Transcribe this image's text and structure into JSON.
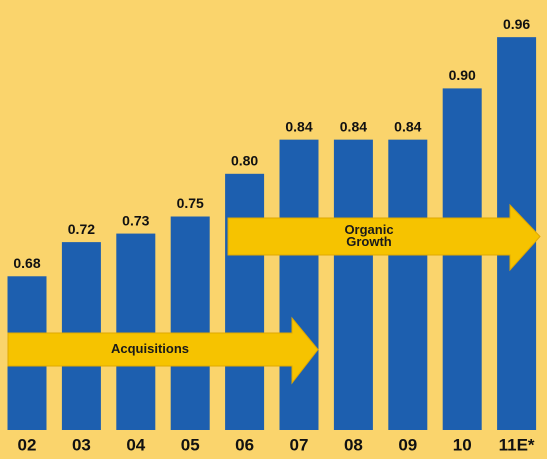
{
  "chart_data": {
    "type": "bar",
    "categories": [
      "02",
      "03",
      "04",
      "05",
      "06",
      "07",
      "08",
      "09",
      "10",
      "11E*"
    ],
    "values": [
      0.68,
      0.72,
      0.73,
      0.75,
      0.8,
      0.84,
      0.84,
      0.84,
      0.9,
      0.96
    ],
    "value_labels": [
      "0.68",
      "0.72",
      "0.73",
      "0.75",
      "0.80",
      "0.84",
      "0.84",
      "0.84",
      "0.90",
      "0.96"
    ],
    "color": "#1d5faf",
    "ylim": [
      0.5,
      1.0
    ],
    "annotations": [
      {
        "lines": [
          "Acquisitions"
        ]
      },
      {
        "lines": [
          "Organic",
          "Growth"
        ]
      }
    ]
  }
}
